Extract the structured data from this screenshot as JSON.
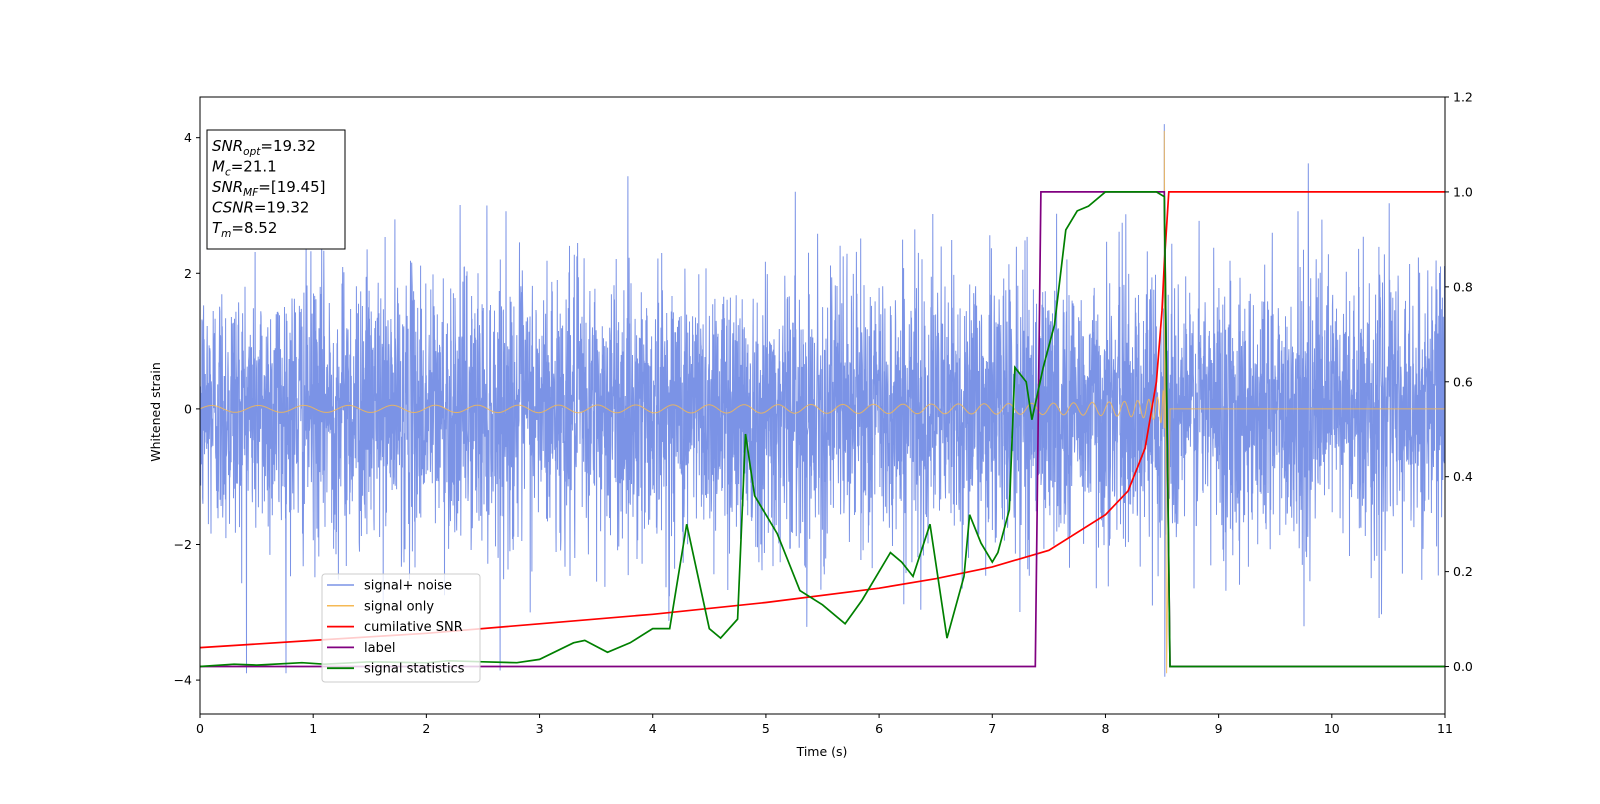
{
  "chart_data": {
    "type": "line",
    "xlabel": "Time (s)",
    "ylabel": "Whitened strain",
    "ylabel_right": "",
    "xlim": [
      0,
      11
    ],
    "ylim": [
      -4.5,
      4.6
    ],
    "ylim_right": [
      -0.1,
      1.2
    ],
    "x_ticks": [
      0,
      1,
      2,
      3,
      4,
      5,
      6,
      7,
      8,
      9,
      10,
      11
    ],
    "y_ticks": [
      -4,
      -2,
      0,
      2,
      4
    ],
    "y_ticks_right": [
      0.0,
      0.2,
      0.4,
      0.6,
      0.8,
      1.0,
      1.2
    ],
    "grid": false,
    "legend_position": "lower-left",
    "annotation_box": {
      "position": "upper-left",
      "lines": [
        {
          "name": "SNR",
          "sub": "opt",
          "value": "=19.32"
        },
        {
          "name": "M",
          "sub": "c",
          "value": "=21.1"
        },
        {
          "name": "SNR",
          "sub": "MF",
          "value": "=[19.45]"
        },
        {
          "name": "CSNR",
          "sub": "",
          "value": "=19.32"
        },
        {
          "name": "T",
          "sub": "m",
          "value": "=8.52"
        }
      ]
    },
    "series": [
      {
        "name": "signal+ noise",
        "axis": "left",
        "color": "#7b93e6",
        "kind": "noise",
        "x_range": [
          0,
          11
        ],
        "amplitude_sigma": 1.0,
        "merger_peak": {
          "x": 8.52,
          "y_max": 4.2,
          "y_min": -3.95
        }
      },
      {
        "name": "signal only",
        "axis": "left",
        "color": "#f5b955",
        "kind": "chirp",
        "x_range": [
          0,
          11
        ],
        "merger_time": 8.52,
        "peak_y_max": 4.1,
        "peak_y_min": -3.9,
        "initial_amplitude": 0.05
      },
      {
        "name": "cumilative SNR",
        "axis": "right",
        "color": "#ff0000",
        "x": [
          0,
          1,
          2,
          3,
          4,
          5,
          6,
          6.5,
          7,
          7.5,
          8,
          8.2,
          8.35,
          8.45,
          8.5,
          8.52,
          8.56,
          11
        ],
        "y": [
          0.04,
          0.055,
          0.07,
          0.09,
          0.11,
          0.135,
          0.165,
          0.185,
          0.21,
          0.245,
          0.32,
          0.37,
          0.46,
          0.6,
          0.75,
          0.85,
          1.0,
          1.0
        ]
      },
      {
        "name": "label",
        "axis": "right",
        "color": "#800080",
        "x": [
          0,
          7.38,
          7.43,
          8.52,
          8.57,
          11
        ],
        "y": [
          0,
          0,
          1,
          1,
          0,
          0
        ]
      },
      {
        "name": "signal statistics",
        "axis": "right",
        "color": "#008000",
        "x": [
          0,
          0.3,
          0.5,
          0.9,
          1.1,
          1.5,
          2.0,
          2.2,
          2.5,
          2.8,
          3.0,
          3.3,
          3.4,
          3.6,
          3.8,
          4.0,
          4.15,
          4.3,
          4.5,
          4.6,
          4.75,
          4.82,
          4.9,
          5.1,
          5.3,
          5.5,
          5.7,
          5.85,
          6.0,
          6.1,
          6.2,
          6.3,
          6.45,
          6.6,
          6.75,
          6.8,
          6.9,
          7.0,
          7.05,
          7.15,
          7.2,
          7.3,
          7.35,
          7.45,
          7.55,
          7.65,
          7.75,
          7.85,
          8.0,
          8.1,
          8.3,
          8.45,
          8.52,
          8.57,
          8.62,
          11
        ],
        "y": [
          0,
          0.005,
          0.003,
          0.008,
          0.005,
          0.01,
          0.008,
          0.012,
          0.01,
          0.008,
          0.015,
          0.05,
          0.055,
          0.03,
          0.05,
          0.08,
          0.08,
          0.3,
          0.08,
          0.06,
          0.1,
          0.49,
          0.36,
          0.28,
          0.16,
          0.13,
          0.09,
          0.14,
          0.2,
          0.24,
          0.22,
          0.19,
          0.3,
          0.06,
          0.19,
          0.32,
          0.26,
          0.22,
          0.24,
          0.33,
          0.63,
          0.6,
          0.52,
          0.63,
          0.72,
          0.92,
          0.96,
          0.97,
          1.0,
          1.0,
          1.0,
          1.0,
          0.99,
          0.0,
          0.0,
          0.0
        ]
      }
    ]
  }
}
